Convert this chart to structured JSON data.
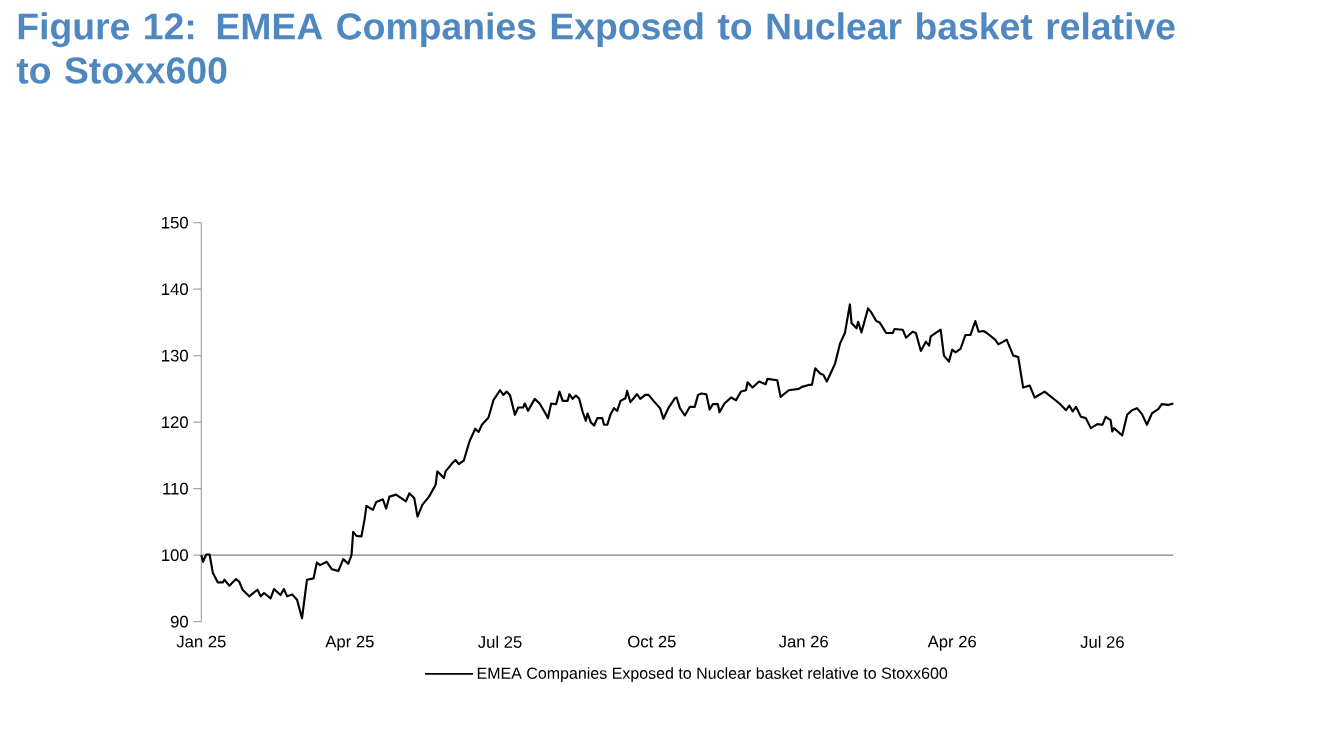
{
  "chart_data": {
    "type": "line",
    "title": "Figure 12: EMEA Companies Exposed to Nuclear basket relative to Stoxx600",
    "x": [
      "2025-01-01",
      "2025-01-02",
      "2025-01-04",
      "2025-01-06",
      "2025-01-08",
      "2025-01-11",
      "2025-01-14",
      "2025-01-15",
      "2025-01-18",
      "2025-01-22",
      "2025-01-24",
      "2025-01-26",
      "2025-01-30",
      "2025-02-04",
      "2025-02-06",
      "2025-02-08",
      "2025-02-12",
      "2025-02-14",
      "2025-02-18",
      "2025-02-20",
      "2025-02-22",
      "2025-02-25",
      "2025-02-28",
      "2025-03-03",
      "2025-03-06",
      "2025-03-10",
      "2025-03-12",
      "2025-03-14",
      "2025-03-18",
      "2025-03-21",
      "2025-03-25",
      "2025-03-28",
      "2025-03-31",
      "2025-04-02",
      "2025-04-03",
      "2025-04-05",
      "2025-04-08",
      "2025-04-10",
      "2025-04-11",
      "2025-04-15",
      "2025-04-17",
      "2025-04-21",
      "2025-04-23",
      "2025-04-25",
      "2025-04-29",
      "2025-05-05",
      "2025-05-07",
      "2025-05-10",
      "2025-05-12",
      "2025-05-15",
      "2025-05-19",
      "2025-05-23",
      "2025-05-24",
      "2025-05-28",
      "2025-05-29",
      "2025-06-02",
      "2025-06-04",
      "2025-06-06",
      "2025-06-09",
      "2025-06-12",
      "2025-06-13",
      "2025-06-16",
      "2025-06-18",
      "2025-06-20",
      "2025-06-24",
      "2025-06-27",
      "2025-07-01",
      "2025-07-03",
      "2025-07-05",
      "2025-07-07",
      "2025-07-10",
      "2025-07-12",
      "2025-07-15",
      "2025-07-16",
      "2025-07-18",
      "2025-07-22",
      "2025-07-25",
      "2025-07-29",
      "2025-07-30",
      "2025-08-01",
      "2025-08-04",
      "2025-08-06",
      "2025-08-08",
      "2025-08-11",
      "2025-08-12",
      "2025-08-14",
      "2025-08-16",
      "2025-08-18",
      "2025-08-20",
      "2025-08-22",
      "2025-08-23",
      "2025-08-25",
      "2025-08-27",
      "2025-08-29",
      "2025-09-01",
      "2025-09-02",
      "2025-09-04",
      "2025-09-06",
      "2025-09-08",
      "2025-09-10",
      "2025-09-12",
      "2025-09-15",
      "2025-09-16",
      "2025-09-18",
      "2025-09-22",
      "2025-09-24",
      "2025-09-27",
      "2025-09-29",
      "2025-10-02",
      "2025-10-06",
      "2025-10-08",
      "2025-10-11",
      "2025-10-15",
      "2025-10-16",
      "2025-10-18",
      "2025-10-21",
      "2025-10-24",
      "2025-10-27",
      "2025-10-29",
      "2025-10-31",
      "2025-11-03",
      "2025-11-05",
      "2025-11-07",
      "2025-11-10",
      "2025-11-11",
      "2025-11-14",
      "2025-11-18",
      "2025-11-21",
      "2025-11-24",
      "2025-11-27",
      "2025-11-28",
      "2025-12-01",
      "2025-12-05",
      "2025-12-09",
      "2025-12-10",
      "2025-12-16",
      "2025-12-18",
      "2025-12-23",
      "2025-12-29",
      "2025-12-31",
      "2026-01-04",
      "2026-01-06",
      "2026-01-08",
      "2026-01-11",
      "2026-01-13",
      "2026-01-15",
      "2026-01-18",
      "2026-01-20",
      "2026-01-23",
      "2026-01-26",
      "2026-01-29",
      "2026-01-30",
      "2026-02-02",
      "2026-02-03",
      "2026-02-05",
      "2026-02-09",
      "2026-02-11",
      "2026-02-14",
      "2026-02-16",
      "2026-02-20",
      "2026-02-24",
      "2026-02-25",
      "2026-03-02",
      "2026-03-04",
      "2026-03-08",
      "2026-03-10",
      "2026-03-13",
      "2026-03-16",
      "2026-03-18",
      "2026-03-19",
      "2026-03-25",
      "2026-03-27",
      "2026-03-30",
      "2026-04-01",
      "2026-04-03",
      "2026-04-06",
      "2026-04-09",
      "2026-04-12",
      "2026-04-15",
      "2026-04-17",
      "2026-04-20",
      "2026-04-22",
      "2026-04-27",
      "2026-04-29",
      "2026-05-02",
      "2026-05-04",
      "2026-05-08",
      "2026-05-11",
      "2026-05-14",
      "2026-05-18",
      "2026-05-21",
      "2026-05-27",
      "2026-06-02",
      "2026-06-05",
      "2026-06-09",
      "2026-06-11",
      "2026-06-13",
      "2026-06-15",
      "2026-06-18",
      "2026-06-21",
      "2026-06-24",
      "2026-06-28",
      "2026-07-01",
      "2026-07-03",
      "2026-07-06",
      "2026-07-07",
      "2026-07-08",
      "2026-07-13",
      "2026-07-16",
      "2026-07-19",
      "2026-07-22",
      "2026-07-25",
      "2026-07-28",
      "2026-07-31",
      "2026-08-04",
      "2026-08-06",
      "2026-08-10",
      "2026-08-13"
    ],
    "series": [
      {
        "name": "EMEA Companies Exposed to Nuclear basket relative to Stoxx600",
        "color": "#000000",
        "values": [
          100.0,
          99.0,
          100.1,
          100.1,
          97.3,
          95.9,
          95.9,
          96.3,
          95.4,
          96.4,
          96.0,
          94.8,
          93.8,
          94.8,
          93.8,
          94.3,
          93.5,
          94.9,
          94.0,
          94.9,
          93.8,
          94.1,
          93.3,
          90.5,
          96.3,
          96.5,
          98.9,
          98.5,
          99.0,
          97.9,
          97.6,
          99.4,
          98.7,
          100.0,
          103.5,
          102.9,
          102.8,
          105.5,
          107.4,
          106.8,
          108.0,
          108.4,
          107.0,
          108.8,
          109.1,
          108.1,
          109.3,
          108.6,
          105.8,
          107.6,
          108.8,
          110.6,
          112.6,
          111.6,
          112.6,
          113.8,
          114.3,
          113.7,
          114.2,
          116.7,
          117.4,
          119.0,
          118.5,
          119.6,
          120.7,
          123.3,
          124.8,
          124.1,
          124.6,
          124.1,
          121.1,
          122.2,
          122.2,
          122.8,
          121.7,
          123.5,
          122.8,
          121.1,
          120.6,
          122.8,
          122.7,
          124.6,
          123.2,
          123.2,
          124.2,
          123.5,
          124.0,
          123.5,
          121.6,
          120.2,
          121.3,
          120.0,
          119.5,
          120.6,
          120.6,
          119.6,
          119.6,
          121.2,
          122.1,
          121.7,
          123.2,
          123.6,
          124.7,
          123.0,
          124.2,
          123.5,
          124.1,
          124.1,
          123.2,
          122.1,
          120.5,
          122.1,
          123.6,
          123.7,
          122.1,
          121.0,
          122.3,
          122.3,
          124.1,
          124.3,
          124.2,
          121.9,
          122.7,
          122.7,
          121.5,
          122.8,
          123.7,
          123.3,
          124.6,
          124.8,
          126.0,
          125.2,
          126.1,
          125.7,
          126.5,
          126.3,
          123.8,
          124.8,
          125.0,
          125.3,
          125.6,
          125.6,
          128.1,
          127.3,
          127.1,
          126.1,
          127.7,
          128.8,
          131.8,
          133.4,
          137.7,
          134.9,
          134.1,
          135.1,
          133.5,
          137.1,
          136.5,
          135.2,
          135.0,
          133.4,
          133.4,
          134.0,
          133.9,
          132.7,
          133.6,
          133.4,
          130.7,
          132.1,
          131.5,
          132.9,
          133.9,
          130.0,
          129.1,
          130.9,
          130.5,
          131.0,
          133.1,
          133.1,
          135.2,
          133.6,
          133.7,
          133.4,
          132.4,
          131.7,
          132.1,
          132.4,
          130.0,
          129.8,
          125.2,
          125.5,
          123.7,
          124.6,
          123.4,
          122.8,
          121.8,
          122.5,
          121.6,
          122.3,
          120.8,
          120.6,
          119.1,
          119.7,
          119.6,
          120.8,
          120.3,
          118.6,
          119.1,
          118.0,
          121.1,
          121.8,
          122.1,
          121.2,
          119.6,
          121.3,
          122.0,
          122.7,
          122.6,
          122.8
        ]
      }
    ],
    "xlim": [
      "2025-01-01",
      "2026-08-13"
    ],
    "xticks": [
      {
        "value": "2025-01-01",
        "label": "Jan 25"
      },
      {
        "value": "2025-04-01",
        "label": "Apr 25"
      },
      {
        "value": "2025-07-01",
        "label": "Jul 25"
      },
      {
        "value": "2025-10-01",
        "label": "Oct 25"
      },
      {
        "value": "2026-01-01",
        "label": "Jan 26"
      },
      {
        "value": "2026-04-01",
        "label": "Apr 26"
      },
      {
        "value": "2026-07-01",
        "label": "Jul 26"
      }
    ],
    "ylim": [
      90,
      150
    ],
    "yticks": [
      90,
      100,
      110,
      120,
      130,
      140,
      150
    ],
    "ref_lines": [
      {
        "axis": "y",
        "value": 100,
        "color": "#808080"
      }
    ],
    "legend": "bottom"
  }
}
